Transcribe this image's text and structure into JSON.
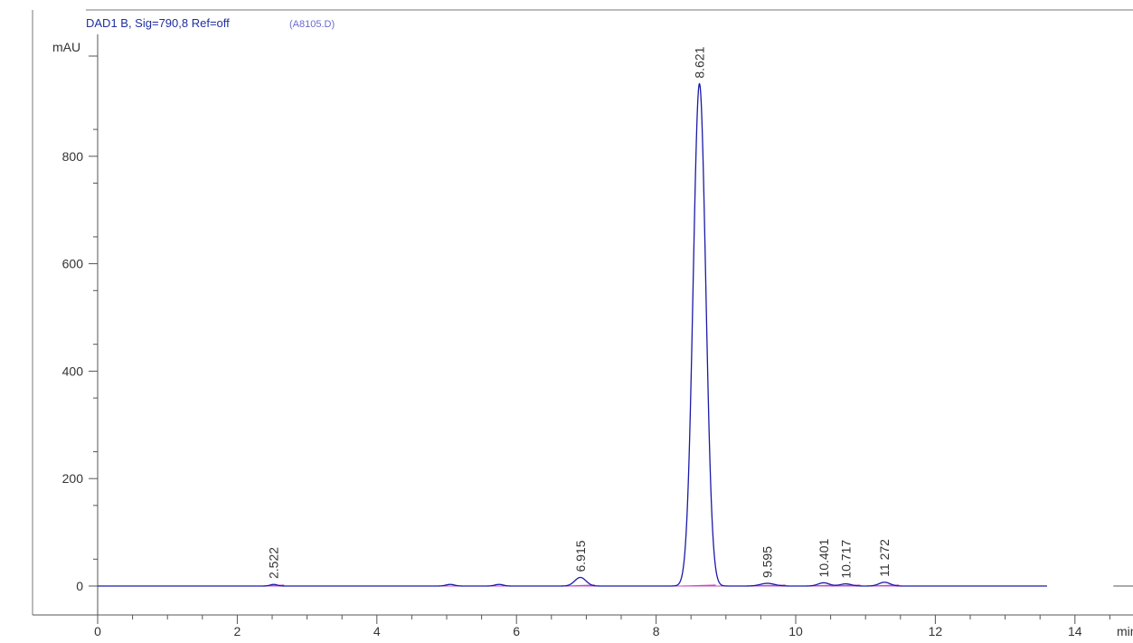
{
  "chart_data": {
    "type": "line",
    "title": "DAD1 B, Sig=790,8 Ref=off",
    "subtitle": "(A8105.D)",
    "ylabel": "mAU",
    "xlabel": "min",
    "xlim": [
      0,
      15
    ],
    "ylim": [
      -50,
      1000
    ],
    "x_ticks": [
      0,
      2,
      4,
      6,
      8,
      10,
      12,
      14
    ],
    "y_ticks": [
      0,
      200,
      400,
      600,
      800
    ],
    "grid": false,
    "colors": {
      "signal": "#1a1aa8",
      "baseline": "#c34fc3",
      "axis": "#555555",
      "title": "#1f2fa0",
      "subtitle": "#6a6ad0"
    },
    "peaks": [
      {
        "rt": 2.522,
        "label": "2.522",
        "height": 3,
        "width": 0.05
      },
      {
        "rt": 6.915,
        "label": "6.915",
        "height": 16,
        "width": 0.08
      },
      {
        "rt": 8.621,
        "label": "8.621",
        "height": 935,
        "width": 0.09
      },
      {
        "rt": 9.595,
        "label": "9.595",
        "height": 5,
        "width": 0.1
      },
      {
        "rt": 10.401,
        "label": "10.401",
        "height": 6,
        "width": 0.08
      },
      {
        "rt": 10.717,
        "label": "10.717",
        "height": 4,
        "width": 0.08
      },
      {
        "rt": 11.272,
        "label": "11 272",
        "height": 7,
        "width": 0.08
      }
    ],
    "minor_bumps": [
      {
        "rt": 5.05,
        "height": 3
      },
      {
        "rt": 5.75,
        "height": 3
      }
    ]
  }
}
